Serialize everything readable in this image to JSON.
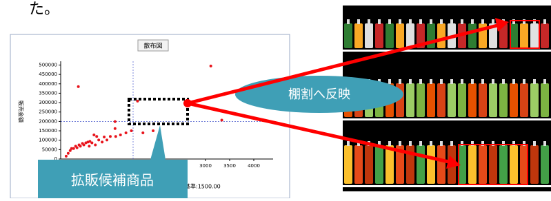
{
  "header": {
    "text": "た。"
  },
  "chart_data": {
    "type": "scatter",
    "title": "散布図",
    "ylabel": "販売金額",
    "xlabel": "基準:1500.00",
    "x": [
      113,
      155,
      197,
      225,
      268,
      310,
      338,
      380,
      408,
      451,
      479,
      521,
      563,
      605,
      648,
      690,
      746,
      788,
      859,
      901,
      958,
      1028,
      1140,
      1239,
      1352,
      591,
      718,
      366,
      1126,
      1592,
      3110,
      3337,
      1704,
      1915,
      1464,
      1126
    ],
    "values": [
      15000,
      30000,
      45000,
      56000,
      56000,
      68000,
      60000,
      75000,
      68000,
      83000,
      75000,
      86000,
      90000,
      94000,
      86000,
      128000,
      120000,
      101000,
      90000,
      117000,
      101000,
      120000,
      120000,
      128000,
      139000,
      68000,
      75000,
      385000,
      199000,
      308000,
      495000,
      207000,
      139000,
      150000,
      150000,
      162000
    ],
    "color": "#e8141c",
    "xlim": [
      0,
      4400
    ],
    "ylim": [
      0,
      520000
    ],
    "xticks": [
      3000,
      3500,
      4000
    ],
    "yticks": [
      0,
      50000,
      100000,
      150000,
      200000,
      250000,
      300000,
      350000,
      400000,
      450000,
      500000
    ],
    "xref": 1500,
    "yref": 200000
  },
  "callouts": {
    "shelf": "棚割へ反映",
    "candidates": "拡販候補商品"
  }
}
